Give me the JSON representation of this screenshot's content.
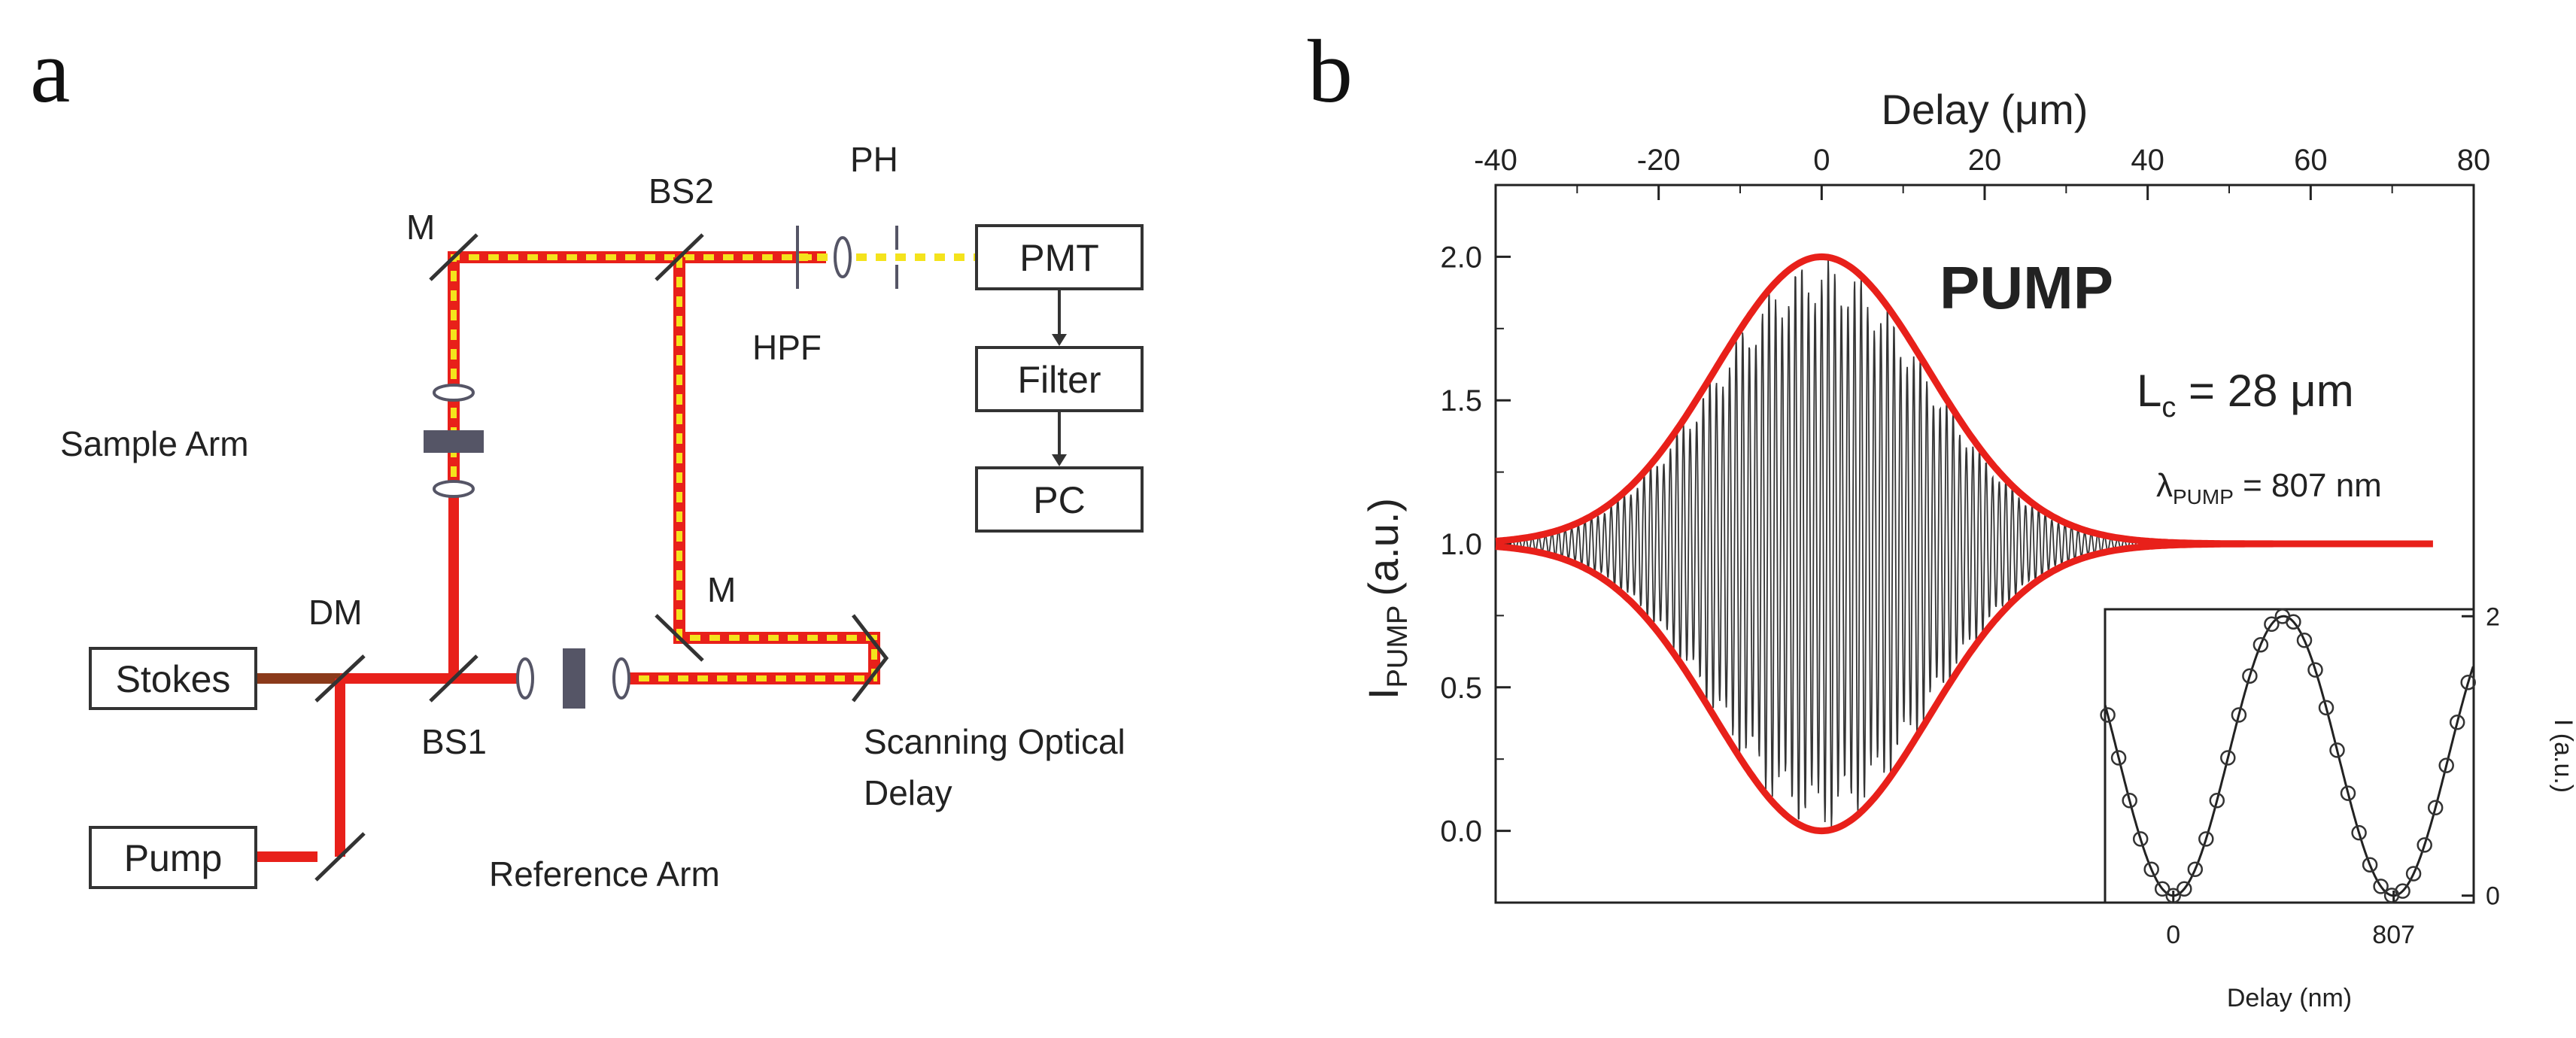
{
  "panel_a": {
    "letter": "a",
    "boxes": {
      "stokes": "Stokes",
      "pump": "Pump",
      "pmt": "PMT",
      "filter": "Filter",
      "pc": "PC"
    },
    "labels": {
      "m_top": "M",
      "bs2": "BS2",
      "ph": "PH",
      "hpf": "HPF",
      "sample_arm": "Sample Arm",
      "dm": "DM",
      "m_bottom": "M",
      "bs1": "BS1",
      "scanning_line1": "Scanning Optical",
      "scanning_line2": "Delay",
      "reference_arm": "Reference Arm"
    },
    "colors": {
      "beam_red": "#e8201a",
      "beam_yellow": "#f4e31c",
      "stokes_beam": "#8b3a1a",
      "element": "#555566"
    }
  },
  "panel_b": {
    "letter": "b",
    "chart_data": {
      "type": "line",
      "title": "PUMP",
      "xlabel_top": "Delay (μm)",
      "ylabel_main": "I",
      "ylabel_sub": "PUMP",
      "ylabel_unit": "(a.u.)",
      "xlim": [
        -40,
        80
      ],
      "ylim": [
        -0.25,
        2.25
      ],
      "x_ticks": [
        "-40",
        "-20",
        "0",
        "20",
        "40",
        "60",
        "80"
      ],
      "y_ticks": [
        "0.0",
        "0.5",
        "1.0",
        "1.5",
        "2.0"
      ],
      "envelope": {
        "center": 0,
        "coherence_length_um": 28,
        "baseline": 1.0,
        "amplitude": 1.0
      },
      "series": [
        {
          "name": "interferogram",
          "color": "#111111",
          "x_range": [
            -40,
            50
          ]
        },
        {
          "name": "upper envelope",
          "color": "#e8201a",
          "x_range": [
            -40,
            75
          ]
        },
        {
          "name": "lower envelope",
          "color": "#e8201a",
          "x_range": [
            -40,
            75
          ]
        }
      ],
      "annotations": {
        "lc_main": "L",
        "lc_sub": "c",
        "lc_value": " = 28 μm",
        "lambda_main": "λ",
        "lambda_sub": "PUMP",
        "lambda_value": " = 807 nm"
      },
      "inset": {
        "xlabel": "Delay (nm)",
        "ylabel": "I (a.u.)",
        "x_ticks": [
          "0",
          "807"
        ],
        "y_ticks": [
          "0",
          "2"
        ],
        "xlim": [
          -250,
          1100
        ],
        "ylim": [
          -0.05,
          2.05
        ],
        "period_nm": 807,
        "marker_step_nm": 40
      }
    }
  }
}
